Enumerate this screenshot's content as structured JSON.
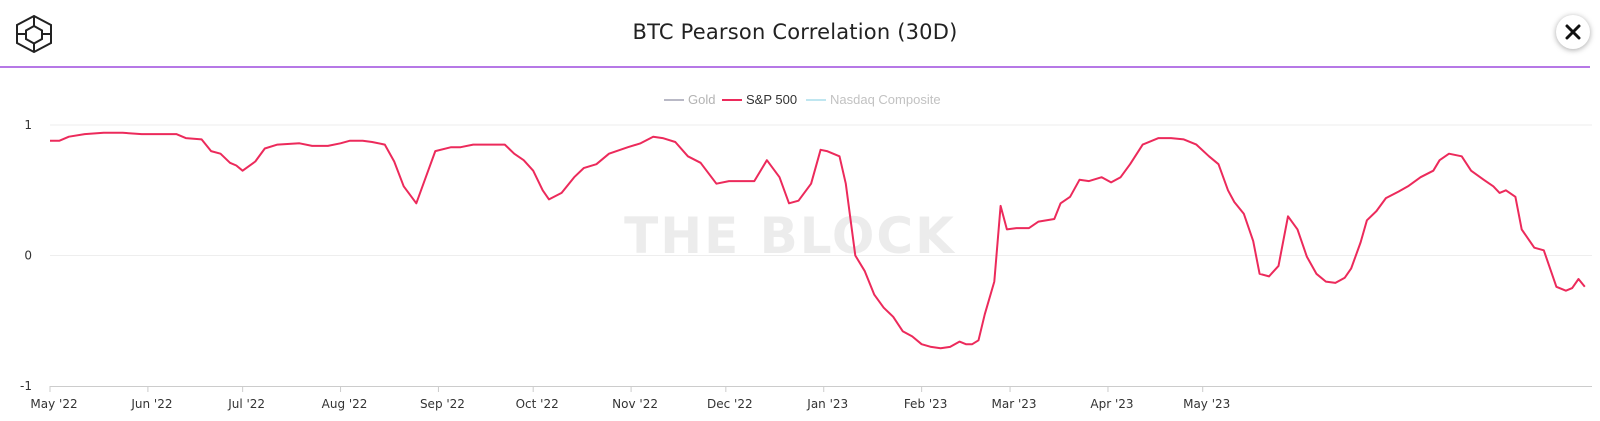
{
  "header": {
    "title": "BTC Pearson Correlation (30D)",
    "logo_icon": "the-block-cube-icon",
    "close_icon": "close-icon"
  },
  "watermark": "THE BLOCK",
  "colors": {
    "gold": "#b9b9c6",
    "sp500": "#ec2a5b",
    "nasdaq": "#bfe6f0",
    "accent": "#b678e6"
  },
  "chart_data": {
    "type": "line",
    "x_ticks": [
      "May '22",
      "Jun '22",
      "Jul '22",
      "Aug '22",
      "Sep '22",
      "Oct '22",
      "Nov '22",
      "Dec '22",
      "Jan '23",
      "Feb '23",
      "Mar '23",
      "Apr '23",
      "May '23"
    ],
    "y_ticks": [
      "1",
      "0",
      "-1"
    ],
    "ylim": [
      -1,
      1
    ],
    "legend": {
      "position": "top-center",
      "entries": [
        "Gold",
        "S&P 500",
        "Nasdaq Composite"
      ]
    },
    "grid": true,
    "series": [
      {
        "name": "Gold",
        "visible": false,
        "values": []
      },
      {
        "name": "Nasdaq Composite",
        "visible": false,
        "values": []
      },
      {
        "name": "S&P 500",
        "visible": true,
        "values": [
          [
            "2022-05-01",
            0.88
          ],
          [
            "2022-05-04",
            0.88
          ],
          [
            "2022-05-07",
            0.91
          ],
          [
            "2022-05-12",
            0.93
          ],
          [
            "2022-05-18",
            0.94
          ],
          [
            "2022-05-24",
            0.94
          ],
          [
            "2022-05-30",
            0.93
          ],
          [
            "2022-06-05",
            0.93
          ],
          [
            "2022-06-10",
            0.93
          ],
          [
            "2022-06-13",
            0.9
          ],
          [
            "2022-06-18",
            0.89
          ],
          [
            "2022-06-21",
            0.8
          ],
          [
            "2022-06-24",
            0.78
          ],
          [
            "2022-06-27",
            0.71
          ],
          [
            "2022-06-29",
            0.69
          ],
          [
            "2022-07-01",
            0.65
          ],
          [
            "2022-07-05",
            0.72
          ],
          [
            "2022-07-08",
            0.82
          ],
          [
            "2022-07-12",
            0.85
          ],
          [
            "2022-07-19",
            0.86
          ],
          [
            "2022-07-23",
            0.84
          ],
          [
            "2022-07-28",
            0.84
          ],
          [
            "2022-08-01",
            0.86
          ],
          [
            "2022-08-04",
            0.88
          ],
          [
            "2022-08-08",
            0.88
          ],
          [
            "2022-08-11",
            0.87
          ],
          [
            "2022-08-15",
            0.85
          ],
          [
            "2022-08-18",
            0.72
          ],
          [
            "2022-08-21",
            0.53
          ],
          [
            "2022-08-25",
            0.4
          ],
          [
            "2022-08-28",
            0.6
          ],
          [
            "2022-08-31",
            0.8
          ],
          [
            "2022-09-05",
            0.83
          ],
          [
            "2022-09-08",
            0.83
          ],
          [
            "2022-09-12",
            0.85
          ],
          [
            "2022-09-18",
            0.85
          ],
          [
            "2022-09-22",
            0.85
          ],
          [
            "2022-09-25",
            0.78
          ],
          [
            "2022-09-28",
            0.73
          ],
          [
            "2022-10-01",
            0.65
          ],
          [
            "2022-10-04",
            0.5
          ],
          [
            "2022-10-06",
            0.43
          ],
          [
            "2022-10-10",
            0.48
          ],
          [
            "2022-10-14",
            0.6
          ],
          [
            "2022-10-17",
            0.67
          ],
          [
            "2022-10-21",
            0.7
          ],
          [
            "2022-10-25",
            0.78
          ],
          [
            "2022-10-31",
            0.83
          ],
          [
            "2022-11-04",
            0.86
          ],
          [
            "2022-11-08",
            0.91
          ],
          [
            "2022-11-11",
            0.9
          ],
          [
            "2022-11-15",
            0.87
          ],
          [
            "2022-11-19",
            0.76
          ],
          [
            "2022-11-23",
            0.71
          ],
          [
            "2022-11-28",
            0.55
          ],
          [
            "2022-12-02",
            0.57
          ],
          [
            "2022-12-06",
            0.57
          ],
          [
            "2022-12-10",
            0.57
          ],
          [
            "2022-12-14",
            0.73
          ],
          [
            "2022-12-18",
            0.6
          ],
          [
            "2022-12-21",
            0.4
          ],
          [
            "2022-12-24",
            0.42
          ],
          [
            "2022-12-28",
            0.55
          ],
          [
            "2022-12-31",
            0.81
          ],
          [
            "2023-01-02",
            0.8
          ],
          [
            "2023-01-06",
            0.76
          ],
          [
            "2023-01-08",
            0.55
          ],
          [
            "2023-01-11",
            0.0
          ],
          [
            "2023-01-14",
            -0.12
          ],
          [
            "2023-01-17",
            -0.3
          ],
          [
            "2023-01-20",
            -0.4
          ],
          [
            "2023-01-23",
            -0.47
          ],
          [
            "2023-01-26",
            -0.58
          ],
          [
            "2023-01-29",
            -0.62
          ],
          [
            "2023-02-01",
            -0.68
          ],
          [
            "2023-02-04",
            -0.7
          ],
          [
            "2023-02-07",
            -0.71
          ],
          [
            "2023-02-10",
            -0.7
          ],
          [
            "2023-02-13",
            -0.66
          ],
          [
            "2023-02-15",
            -0.68
          ],
          [
            "2023-02-17",
            -0.68
          ],
          [
            "2023-02-19",
            -0.65
          ],
          [
            "2023-02-21",
            -0.45
          ],
          [
            "2023-02-24",
            -0.2
          ],
          [
            "2023-02-26",
            0.38
          ],
          [
            "2023-02-28",
            0.2
          ],
          [
            "2023-03-03",
            0.21
          ],
          [
            "2023-03-07",
            0.21
          ],
          [
            "2023-03-10",
            0.26
          ],
          [
            "2023-03-15",
            0.28
          ],
          [
            "2023-03-17",
            0.4
          ],
          [
            "2023-03-20",
            0.45
          ],
          [
            "2023-03-23",
            0.58
          ],
          [
            "2023-03-26",
            0.57
          ],
          [
            "2023-03-30",
            0.6
          ],
          [
            "2023-04-02",
            0.56
          ],
          [
            "2023-04-05",
            0.6
          ],
          [
            "2023-04-08",
            0.7
          ],
          [
            "2023-04-12",
            0.85
          ],
          [
            "2023-04-17",
            0.9
          ],
          [
            "2023-04-21",
            0.9
          ],
          [
            "2023-04-25",
            0.89
          ],
          [
            "2023-04-29",
            0.85
          ],
          [
            "2023-05-03",
            0.76
          ],
          [
            "2023-05-06",
            0.7
          ],
          [
            "2023-05-09",
            0.5
          ],
          [
            "2023-05-11",
            0.41
          ],
          [
            "2023-05-14",
            0.32
          ],
          [
            "2023-05-17",
            0.11
          ],
          [
            "2023-05-19",
            -0.14
          ],
          [
            "2023-05-22",
            -0.16
          ],
          [
            "2023-05-25",
            -0.08
          ],
          [
            "2023-05-28",
            0.3
          ],
          [
            "2023-05-31",
            0.2
          ],
          [
            "2023-06-03",
            -0.01
          ],
          [
            "2023-06-06",
            -0.14
          ],
          [
            "2023-06-09",
            -0.2
          ],
          [
            "2023-06-12",
            -0.21
          ],
          [
            "2023-06-15",
            -0.17
          ],
          [
            "2023-06-17",
            -0.1
          ],
          [
            "2023-06-20",
            0.1
          ],
          [
            "2023-06-22",
            0.27
          ],
          [
            "2023-06-25",
            0.34
          ],
          [
            "2023-06-28",
            0.44
          ],
          [
            "2023-07-02",
            0.49
          ],
          [
            "2023-07-05",
            0.53
          ],
          [
            "2023-07-09",
            0.6
          ],
          [
            "2023-07-13",
            0.65
          ],
          [
            "2023-07-15",
            0.73
          ],
          [
            "2023-07-18",
            0.78
          ],
          [
            "2023-07-22",
            0.76
          ],
          [
            "2023-07-25",
            0.65
          ],
          [
            "2023-07-29",
            0.58
          ],
          [
            "2023-08-01",
            0.53
          ],
          [
            "2023-08-03",
            0.48
          ],
          [
            "2023-08-05",
            0.5
          ],
          [
            "2023-08-08",
            0.45
          ],
          [
            "2023-08-10",
            0.2
          ],
          [
            "2023-08-14",
            0.06
          ],
          [
            "2023-08-17",
            0.04
          ],
          [
            "2023-08-19",
            -0.1
          ],
          [
            "2023-08-21",
            -0.24
          ],
          [
            "2023-08-24",
            -0.27
          ],
          [
            "2023-08-26",
            -0.25
          ],
          [
            "2023-08-28",
            -0.18
          ],
          [
            "2023-08-30",
            -0.24
          ]
        ]
      }
    ]
  }
}
